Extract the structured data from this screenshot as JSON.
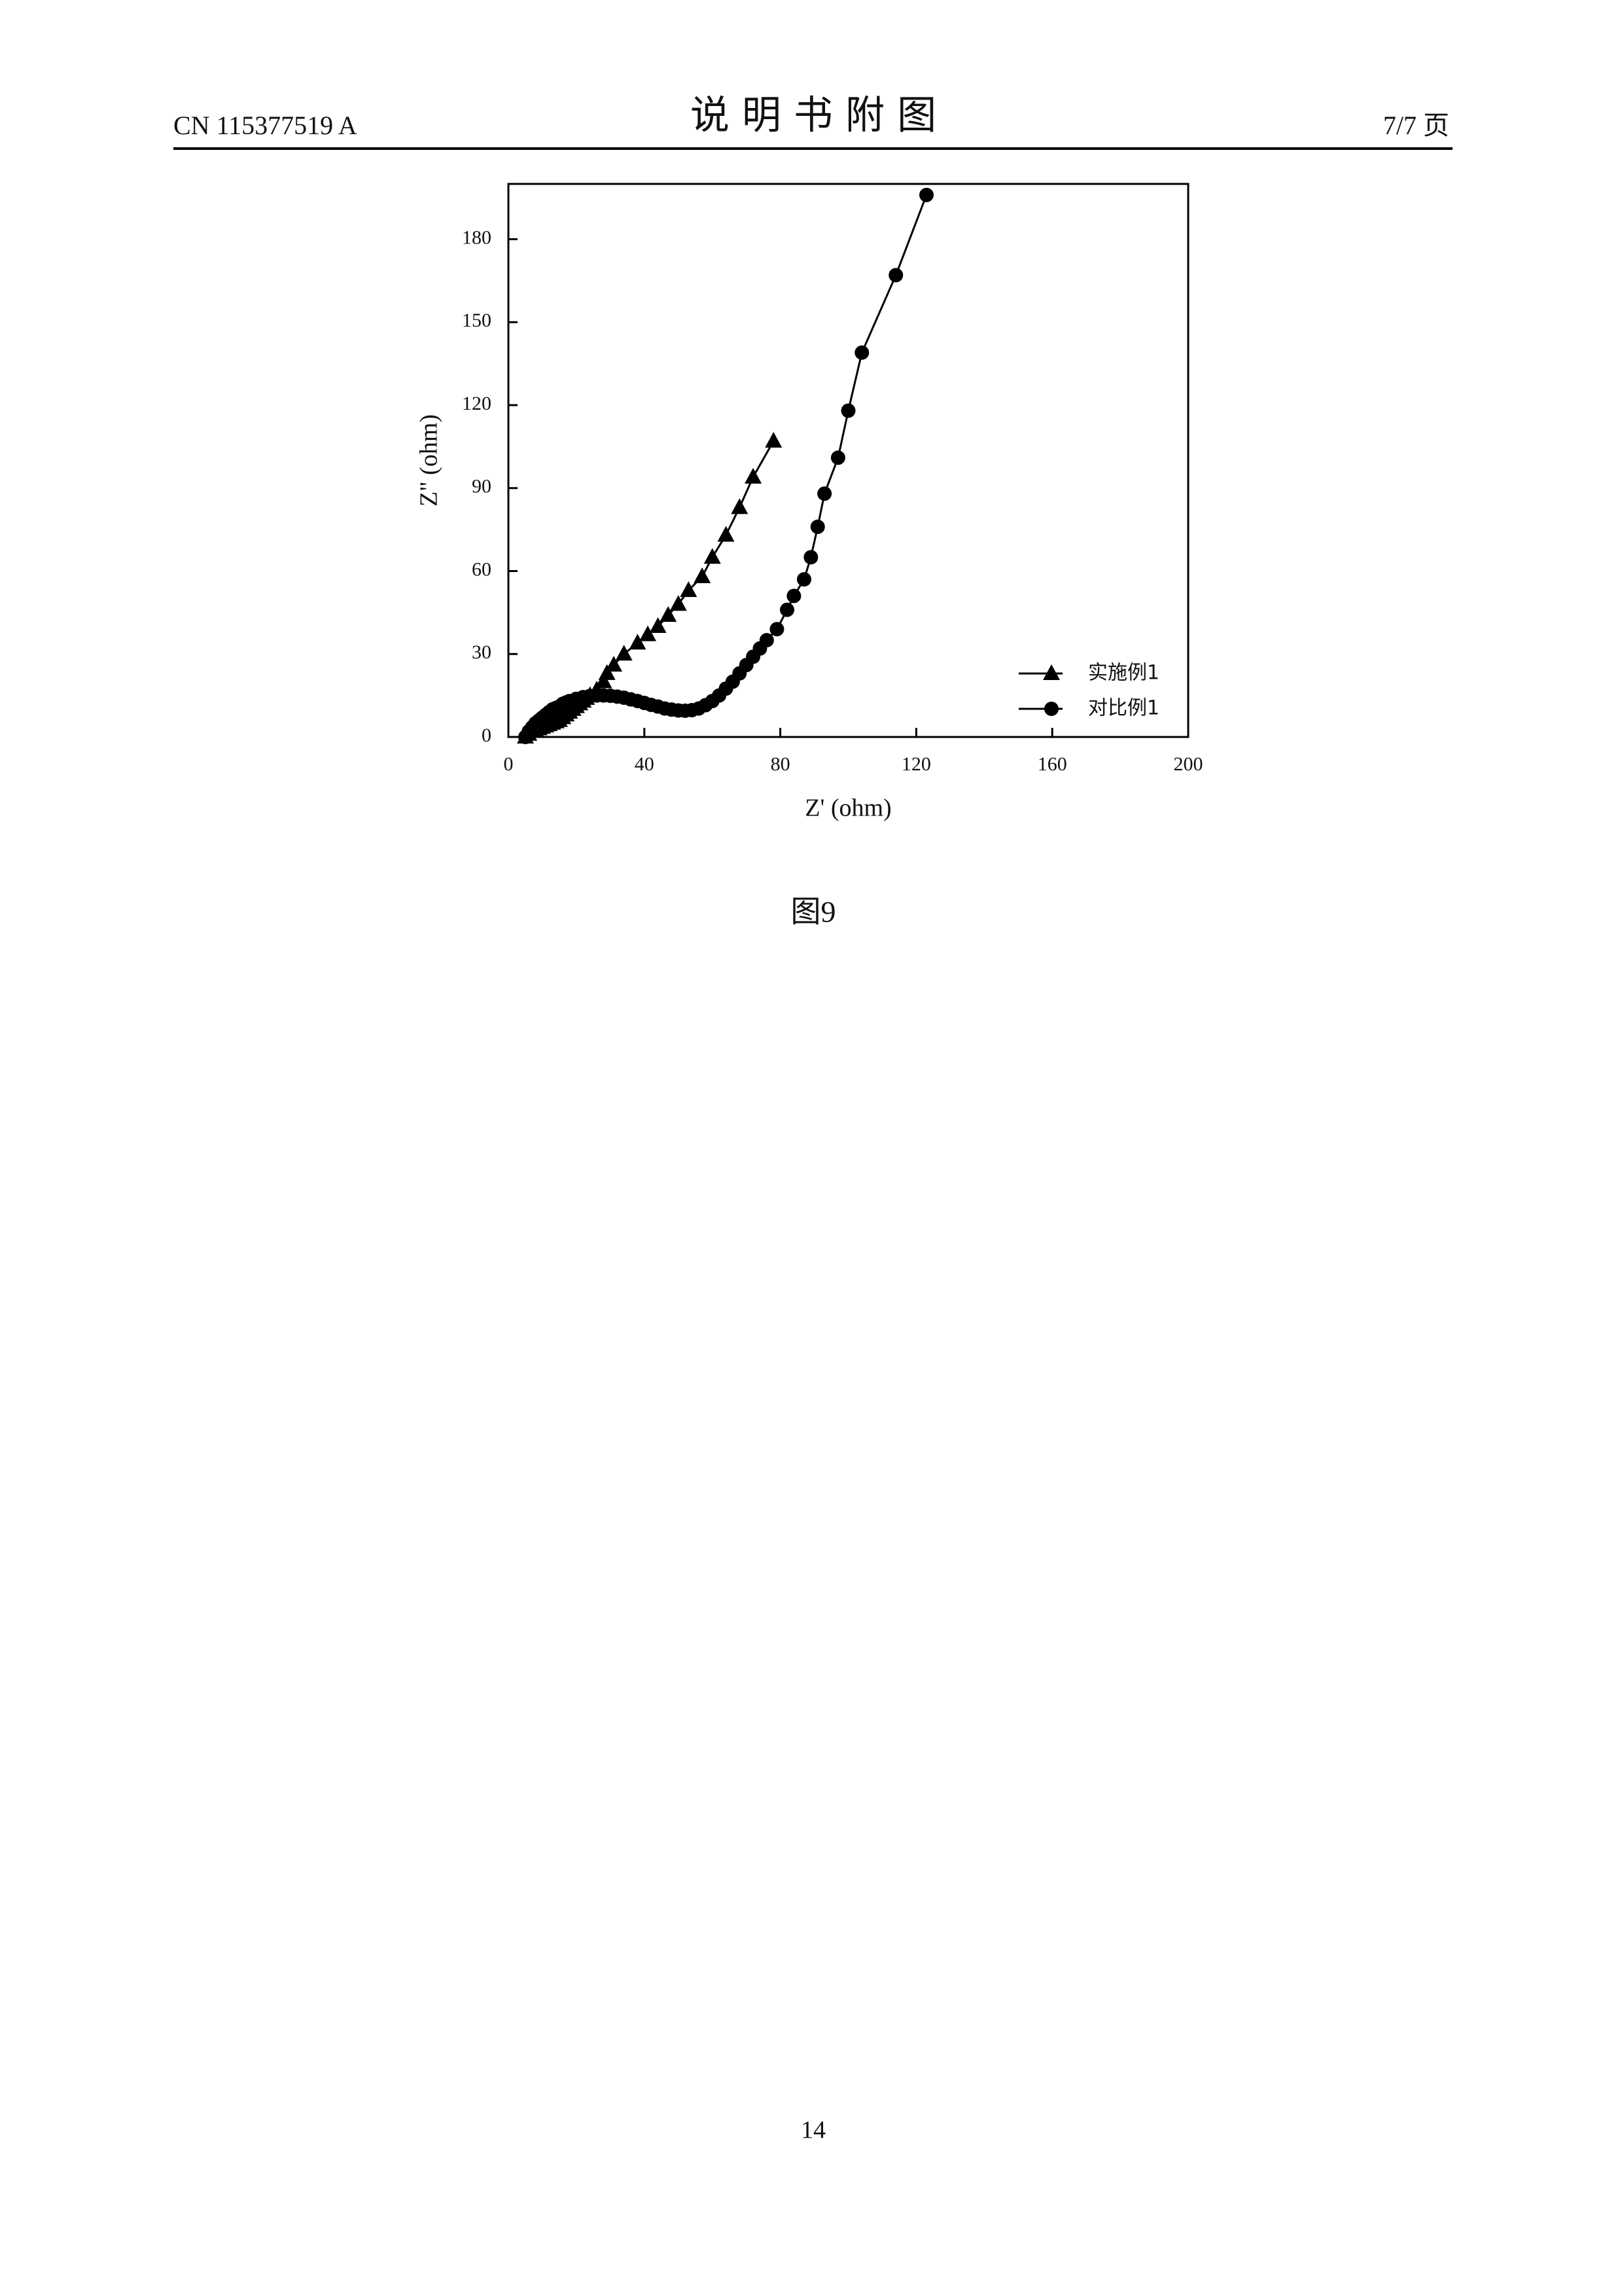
{
  "header": {
    "left": "CN 115377519 A",
    "title": "说 明 书 附 图",
    "right": "7/7 页"
  },
  "chart_data": {
    "type": "line",
    "x_label": "Z' (ohm)",
    "y_label": "Z\" (ohm)",
    "xlim": [
      0,
      200
    ],
    "xticks": [
      0,
      40,
      80,
      120,
      160,
      200
    ],
    "ylim": [
      0,
      200
    ],
    "yticks": [
      0,
      30,
      60,
      90,
      120,
      150,
      180
    ],
    "legend": "bottom-right",
    "series": [
      {
        "name": "实施例1",
        "color": "#000000",
        "marker": "triangle",
        "x": [
          5,
          6,
          7,
          8,
          9,
          10,
          11,
          12,
          13,
          14,
          15,
          16,
          17,
          18,
          19,
          20,
          21,
          22,
          23,
          24,
          26,
          28,
          29,
          31,
          34,
          38,
          41,
          44,
          47,
          50,
          53,
          57,
          60,
          64,
          68,
          72,
          78
        ],
        "values": [
          0,
          1,
          2,
          2.5,
          3,
          3.5,
          4,
          4.5,
          5,
          5.5,
          6,
          7,
          8,
          9,
          10,
          11,
          12,
          13,
          14,
          15,
          17,
          20,
          23,
          26,
          30,
          34,
          37,
          40,
          44,
          48,
          53,
          58,
          65,
          73,
          83,
          94,
          107
        ]
      },
      {
        "name": "对比例1",
        "color": "#000000",
        "marker": "circle",
        "x": [
          5,
          6,
          7,
          8,
          9,
          10,
          11,
          12,
          13,
          14,
          15,
          16,
          17,
          18,
          20,
          22,
          24,
          26,
          28,
          30,
          32,
          34,
          36,
          38,
          40,
          42,
          44,
          46,
          48,
          50,
          52,
          54,
          56,
          58,
          60,
          62,
          64,
          66,
          68,
          70,
          72,
          74,
          76,
          79,
          82,
          84,
          87,
          89,
          91,
          93,
          97,
          100,
          104,
          114,
          123
        ],
        "values": [
          0,
          2,
          3.5,
          5,
          6,
          7,
          8,
          9,
          10,
          10.5,
          11,
          12,
          12.5,
          13,
          13.8,
          14.4,
          14.8,
          15,
          15,
          14.9,
          14.6,
          14.2,
          13.6,
          13,
          12.3,
          11.6,
          11,
          10.3,
          9.9,
          9.6,
          9.5,
          9.7,
          10.3,
          11.5,
          13,
          15,
          17.5,
          20,
          23,
          26,
          29,
          32,
          35,
          39,
          46,
          51,
          57,
          65,
          76,
          88,
          101,
          118,
          139,
          167,
          196
        ]
      }
    ]
  },
  "caption": "图9",
  "page_number": "14"
}
